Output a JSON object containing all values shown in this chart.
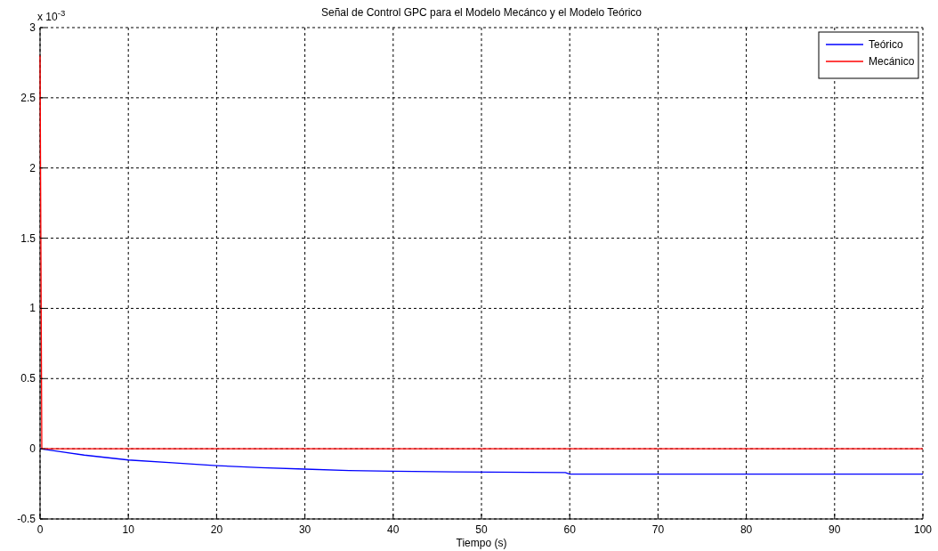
{
  "chart_data": {
    "type": "line",
    "title": "Señal de Control GPC para el Modelo Mecánco y el Modelo Teórico",
    "xlabel": "Tiempo (s)",
    "annotations": [
      "x 10$^{-3}$"
    ],
    "xlim": [
      0,
      100
    ],
    "xticks": [
      0,
      10,
      20,
      30,
      40,
      50,
      60,
      70,
      80,
      90,
      100
    ],
    "ylim": [
      -0.5,
      3
    ],
    "yticks": [
      -0.5,
      0,
      0.5,
      1,
      1.5,
      2,
      2.5,
      3
    ],
    "grid": true,
    "legend": "top right",
    "line_style": "solid",
    "marker": "none",
    "series": [
      {
        "name": "Teórico",
        "color": "#0000ff",
        "x": [
          0,
          5,
          10,
          15,
          20,
          25,
          30,
          35,
          40,
          47,
          59.5,
          60,
          100
        ],
        "values": [
          0,
          -0.045,
          -0.08,
          -0.1,
          -0.12,
          -0.135,
          -0.145,
          -0.155,
          -0.16,
          -0.165,
          -0.17,
          -0.18,
          -0.18
        ]
      },
      {
        "name": "Mecánico",
        "color": "#ff0000",
        "x": [
          0,
          0.2,
          100
        ],
        "values": [
          2.8,
          0,
          0
        ]
      }
    ]
  }
}
